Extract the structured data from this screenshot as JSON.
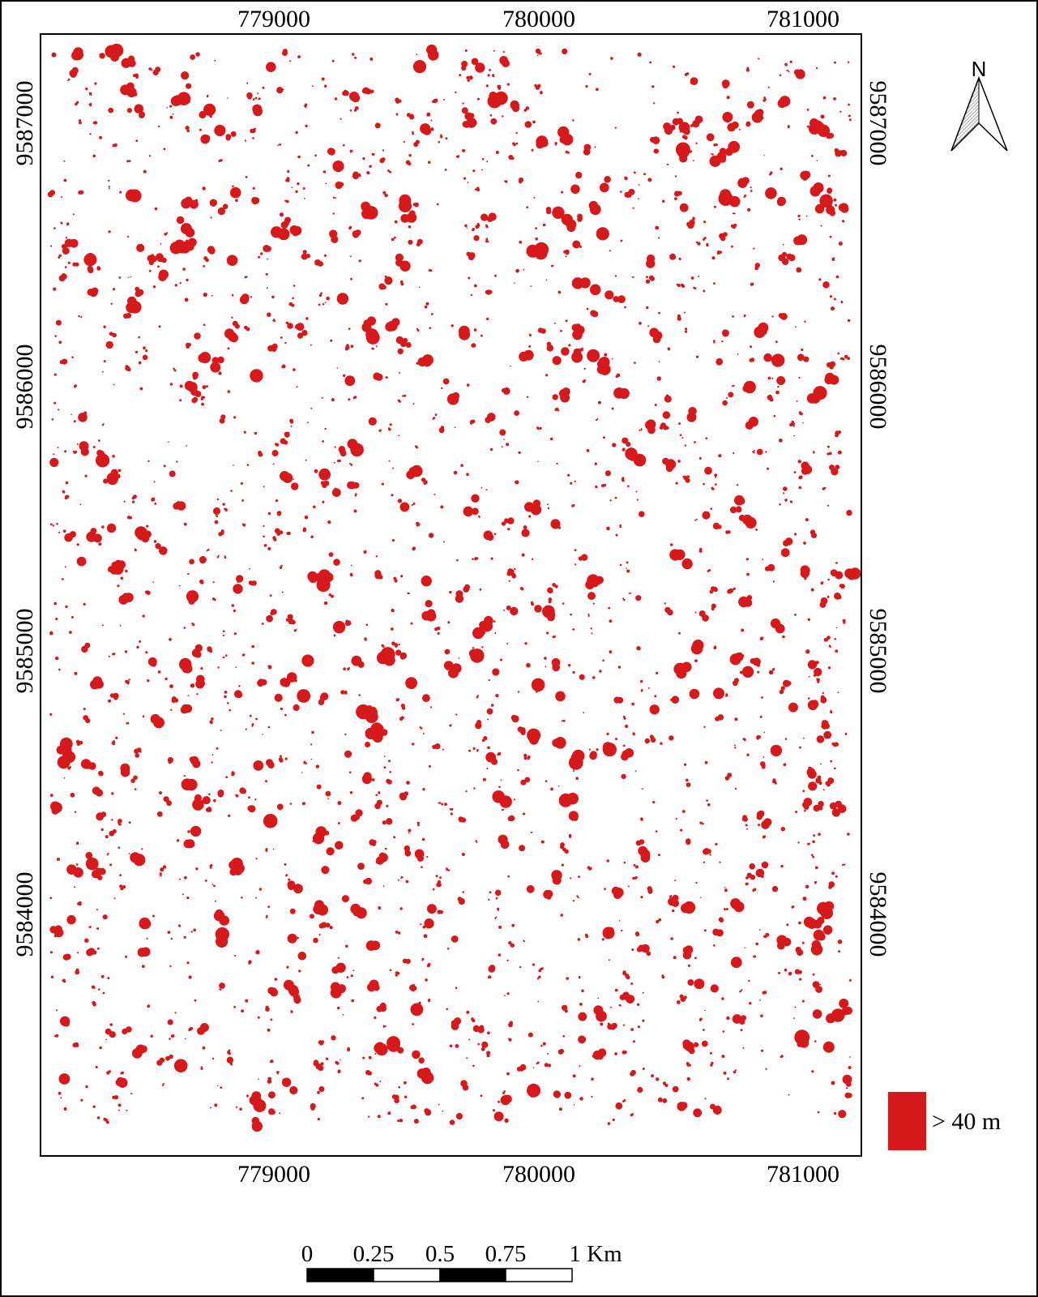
{
  "map": {
    "x_ticks": [
      {
        "label": "779000",
        "easting": 779000
      },
      {
        "label": "780000",
        "easting": 780000
      },
      {
        "label": "781000",
        "easting": 781000
      }
    ],
    "y_ticks": [
      {
        "label": "9587000",
        "northing": 9587000
      },
      {
        "label": "9586000",
        "northing": 9586000
      },
      {
        "label": "9585000",
        "northing": 9585000
      },
      {
        "label": "9584000",
        "northing": 9584000
      }
    ],
    "patch_color": "#d7191c",
    "background_color": "#ffffff"
  },
  "north_arrow": {
    "label": "N"
  },
  "legend": {
    "label": "> 40 m",
    "color": "#d7191c"
  },
  "scale_bar": {
    "ticks": [
      "0",
      "0.25",
      "0.5",
      "0.75",
      "1 Km"
    ]
  }
}
